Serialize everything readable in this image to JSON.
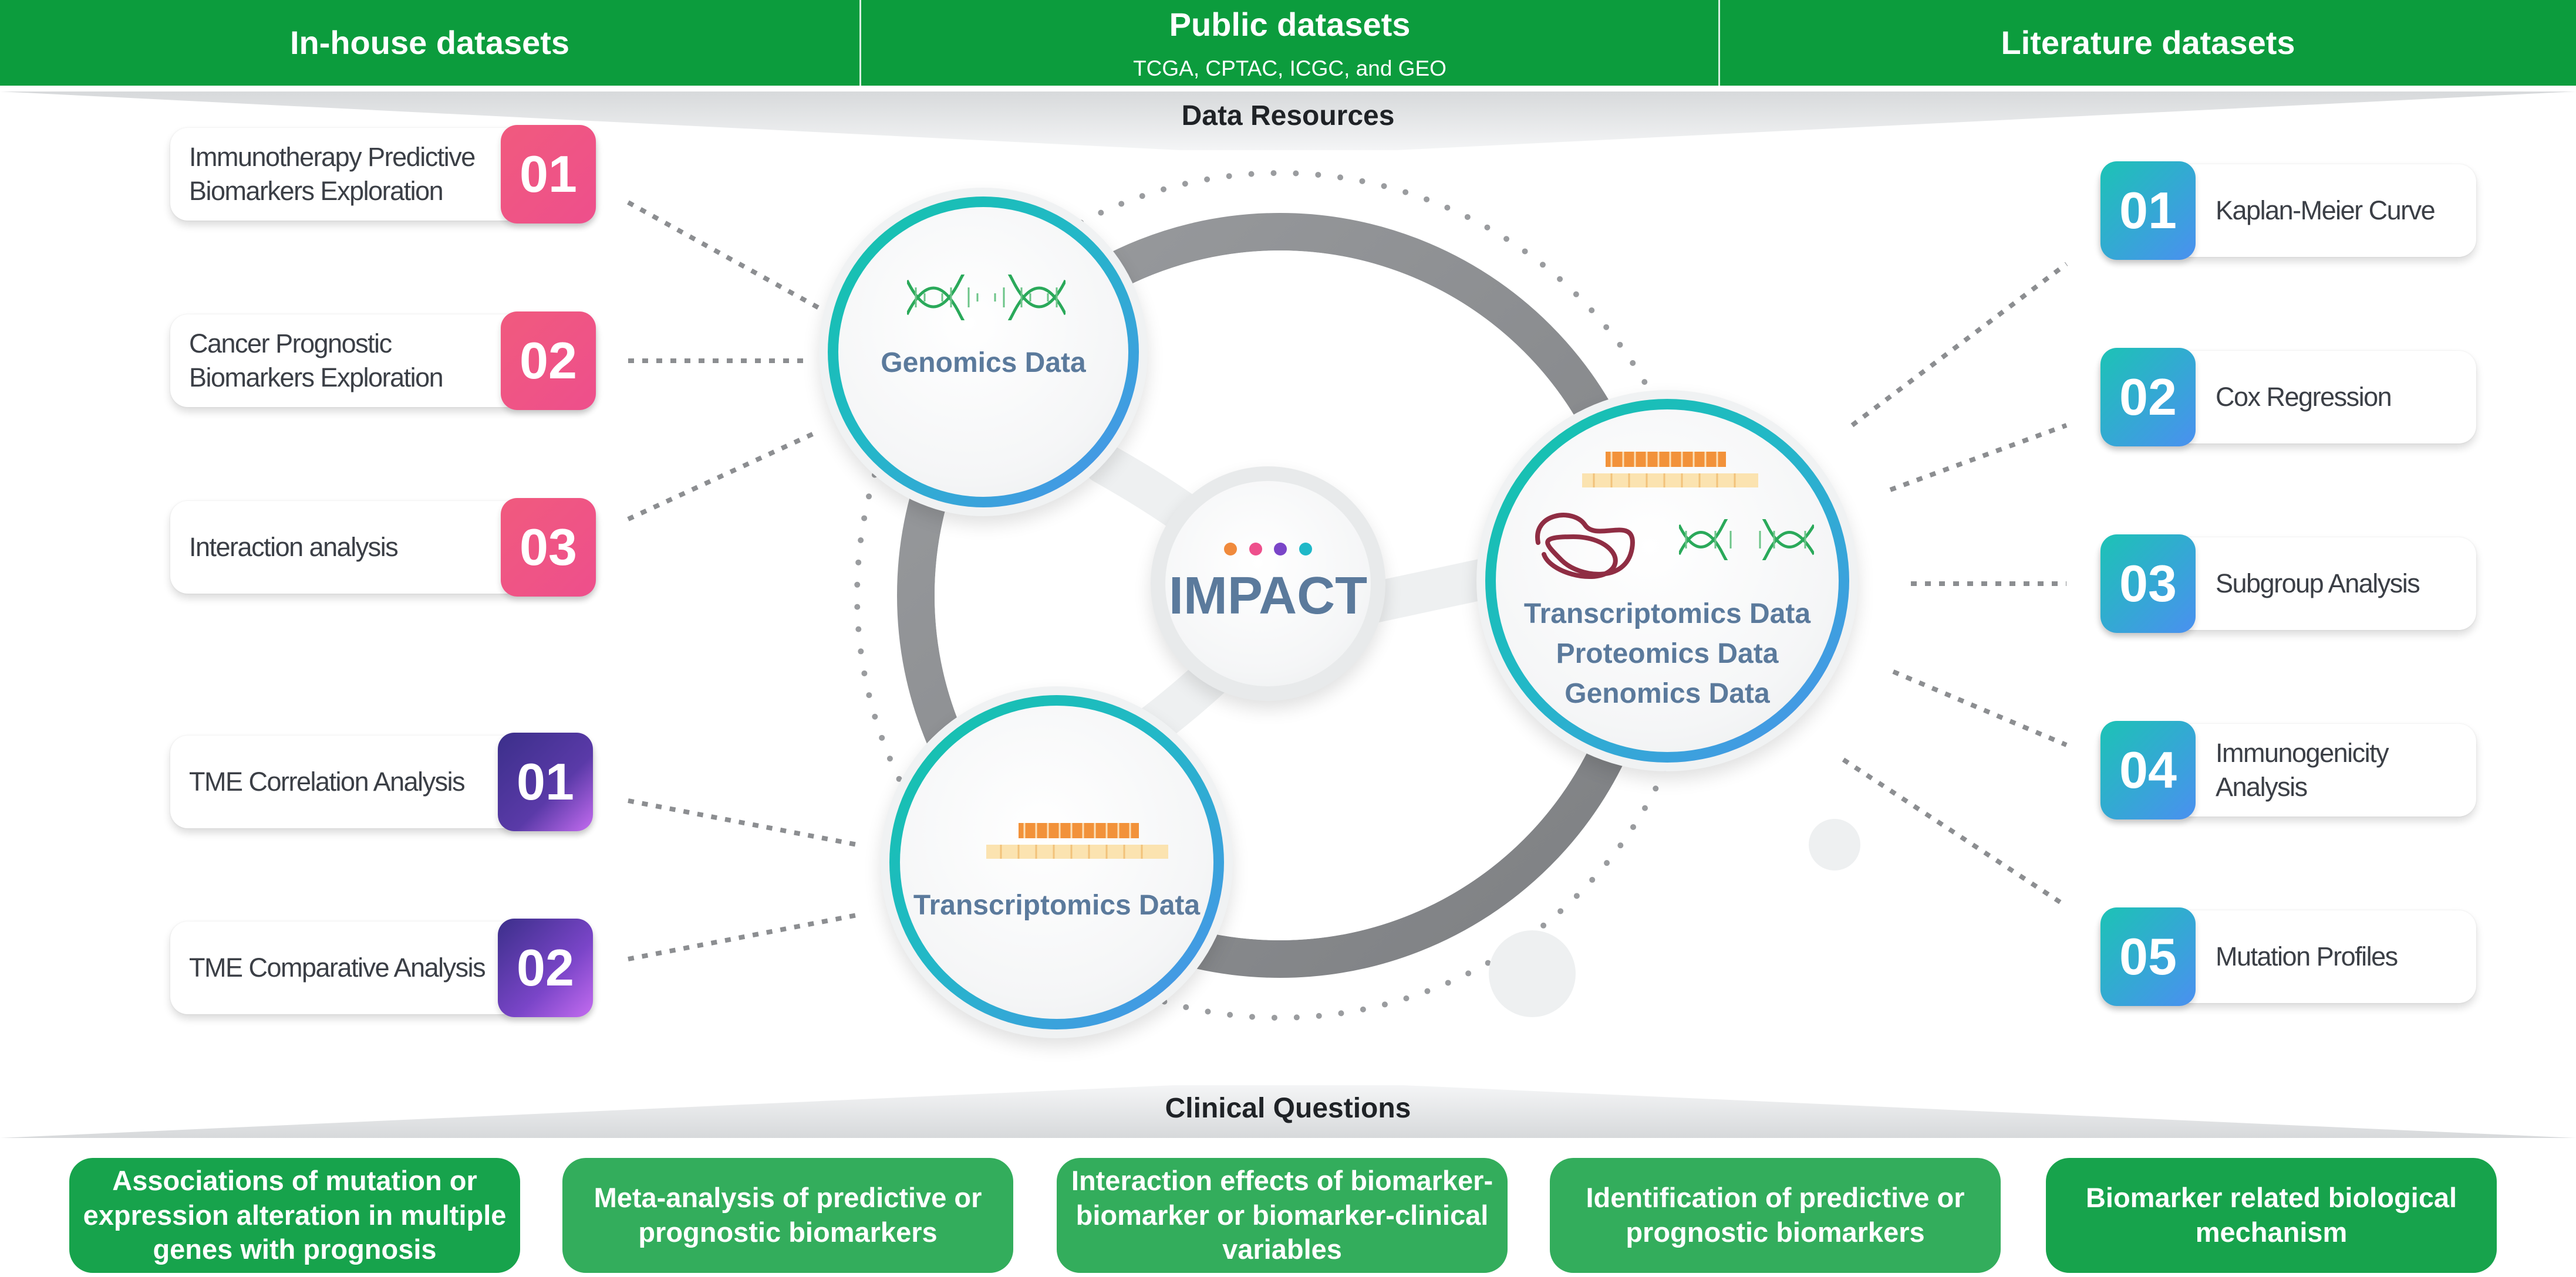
{
  "header": {
    "in_house": "In-house datasets",
    "public": "Public datasets",
    "public_sub": "TCGA, CPTAC, ICGC, and GEO",
    "literature": "Literature datasets"
  },
  "data_resources_label": "Data Resources",
  "clinical_questions_label": "Clinical Questions",
  "left_cards": [
    {
      "number": "01",
      "label": "Immunotherapy Predictive Biomarkers Exploration",
      "color": "#ee4f8c"
    },
    {
      "number": "02",
      "label": "Cancer Prognostic Biomarkers Exploration",
      "color": "#ee4f8c"
    },
    {
      "number": "03",
      "label": "Interaction analysis",
      "color": "#ee4f8c"
    },
    {
      "number": "01",
      "label": "TME Correlation Analysis",
      "color": "#5a3aa8"
    },
    {
      "number": "02",
      "label": "TME Comparative Analysis",
      "color": "#7a45c8"
    }
  ],
  "right_cards": [
    {
      "number": "01",
      "label": "Kaplan-Meier Curve"
    },
    {
      "number": "02",
      "label": "Cox Regression"
    },
    {
      "number": "03",
      "label": "Subgroup Analysis"
    },
    {
      "number": "04",
      "label": "Immunogenicity Analysis"
    },
    {
      "number": "05",
      "label": "Mutation Profiles"
    }
  ],
  "circles": {
    "genomics": "Genomics Data",
    "transcriptomics": "Transcriptomics Data",
    "multi": [
      "Transcriptomics Data",
      "Proteomics Data",
      "Genomics Data"
    ],
    "center": "IMPACT",
    "center_dot_colors": [
      "#f08a3c",
      "#ee4f8c",
      "#7a45c8",
      "#1fb8c8"
    ]
  },
  "clinical_questions": [
    "Associations of mutation or expression alteration in multiple genes with prognosis",
    "Meta-analysis of predictive or prognostic biomarkers",
    "Interaction effects of biomarker-biomarker or biomarker-clinical variables",
    "Identification of predictive or prognostic biomarkers",
    "Biomarker related biological mechanism"
  ],
  "colors": {
    "green": "#0c9c3d",
    "pink": "#ee4f8c",
    "teal_blue": [
      "#1cc3b5",
      "#4a90f0"
    ],
    "circle_text": "#5b7a9c",
    "ring_gray": "#8e9093"
  }
}
